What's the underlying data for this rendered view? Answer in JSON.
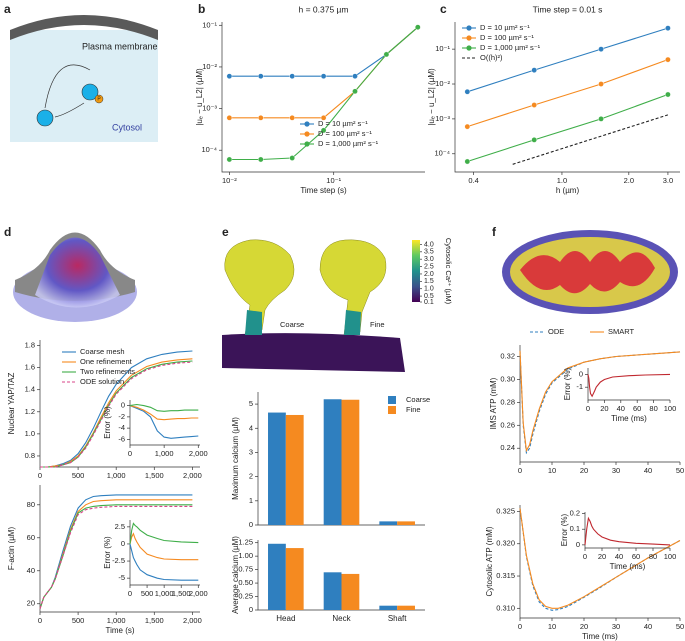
{
  "panel_labels": [
    "a",
    "b",
    "c",
    "d",
    "e",
    "f"
  ],
  "diagram_a": {
    "membrane": "Plasma membrane",
    "cytosol": "Cytosol",
    "phospho": "P"
  },
  "panel_e": {
    "coarse": "Coarse",
    "fine": "Fine",
    "colorbar": {
      "label": "Cytosolic Ca²⁺ (µM)",
      "range": [
        0.1,
        4.3
      ],
      "ticks": [
        {
          "value": 4.0,
          "label": "4.0"
        },
        3.5,
        {
          "value": 3.0,
          "label": "3.0"
        },
        2.5,
        {
          "value": 2.0,
          "label": "2.0"
        },
        1.5,
        {
          "value": 1.0,
          "label": "1.0"
        },
        0.5,
        0.1
      ]
    }
  },
  "chart_data": [
    {
      "type": "line",
      "title": "h = 0.375 µm",
      "xlabel": "Time step (s)",
      "ylabel": "|uₑ − u_L2| (µM)",
      "xscale": "log",
      "yscale": "log",
      "markers": true,
      "x": [
        0.01,
        0.02,
        0.04,
        0.08,
        0.16,
        0.32,
        0.64
      ],
      "xlim": [
        0.0085,
        0.75
      ],
      "ylim": [
        3e-05,
        0.12
      ],
      "xticks": [
        {
          "value": 0.01,
          "label": "10⁻²"
        },
        {
          "value": 0.1,
          "label": "10⁻¹"
        }
      ],
      "yticks": [
        {
          "value": 0.0001,
          "label": "10⁻⁴"
        },
        {
          "value": 0.001,
          "label": "10⁻³"
        },
        {
          "value": 0.01,
          "label": "10⁻²"
        },
        {
          "value": 0.1,
          "label": "10⁻¹"
        }
      ],
      "series": [
        {
          "name": "D = 10 µm² s⁻¹",
          "color": "#2f7fbf",
          "values": [
            0.006,
            0.006,
            0.006,
            0.006,
            0.006,
            0.02,
            0.09
          ]
        },
        {
          "name": "D = 100 µm² s⁻¹",
          "color": "#f58a20",
          "values": [
            0.0006,
            0.0006,
            0.0006,
            0.0006,
            0.0026,
            0.02,
            0.09
          ]
        },
        {
          "name": "D = 1,000 µm² s⁻¹",
          "color": "#3fae49",
          "values": [
            6e-05,
            6e-05,
            6.5e-05,
            0.0003,
            0.0026,
            0.02,
            0.09
          ]
        }
      ]
    },
    {
      "type": "line",
      "title": "Time step = 0.01 s",
      "xlabel": "h (µm)",
      "ylabel": "|uₑ − u_L2| (µM)",
      "xscale": "log",
      "yscale": "log",
      "markers": true,
      "x": [
        0.375,
        0.75,
        1.5,
        3.0
      ],
      "xlim": [
        0.33,
        3.4
      ],
      "ylim": [
        3e-05,
        0.6
      ],
      "xticks": [
        0.4,
        {
          "value": 1.0,
          "label": "1.0"
        },
        {
          "value": 2.0,
          "label": "2.0"
        },
        {
          "value": 3.0,
          "label": "3.0"
        }
      ],
      "yticks": [
        {
          "value": 0.0001,
          "label": "10⁻⁴"
        },
        {
          "value": 0.001,
          "label": "10⁻³"
        },
        {
          "value": 0.01,
          "label": "10⁻²"
        },
        {
          "value": 0.1,
          "label": "10⁻¹"
        }
      ],
      "series": [
        {
          "name": "D = 10 µm² s⁻¹",
          "color": "#2f7fbf",
          "values": [
            0.006,
            0.025,
            0.1,
            0.4
          ]
        },
        {
          "name": "D = 100 µm² s⁻¹",
          "color": "#f58a20",
          "values": [
            0.0006,
            0.0025,
            0.01,
            0.05
          ]
        },
        {
          "name": "D = 1,000 µm² s⁻¹",
          "color": "#3fae49",
          "values": [
            6e-05,
            0.00025,
            0.001,
            0.005
          ]
        },
        {
          "name": "O((h)²)",
          "color": "#222222",
          "dash": true,
          "nomarker": true,
          "x": [
            0.6,
            3.0
          ],
          "values": [
            5e-05,
            0.0013
          ]
        }
      ]
    },
    {
      "type": "line",
      "ylabel": "Nuclear YAP/TAZ",
      "x": [
        0,
        100,
        200,
        300,
        400,
        500,
        600,
        700,
        800,
        900,
        1000,
        1200,
        1400,
        1600,
        1800,
        2000
      ],
      "xlim": [
        0,
        2100
      ],
      "ylim": [
        0.7,
        1.85
      ],
      "xticks": [
        0,
        500,
        {
          "value": 1000,
          "label": "1,000"
        },
        {
          "value": 1500,
          "label": "1,500"
        },
        {
          "value": 2000,
          "label": "2,000"
        }
      ],
      "yticks": [
        0.8,
        {
          "value": 1.0,
          "label": "1.0"
        },
        1.2,
        1.4,
        1.6,
        1.8
      ],
      "series": [
        {
          "name": "Coarse mesh",
          "color": "#2f7fbf",
          "values": [
            0.7,
            0.7,
            0.71,
            0.73,
            0.76,
            0.82,
            0.92,
            1.05,
            1.2,
            1.34,
            1.45,
            1.6,
            1.68,
            1.72,
            1.74,
            1.75
          ]
        },
        {
          "name": "One refinement",
          "color": "#f58a20",
          "values": [
            0.7,
            0.7,
            0.71,
            0.72,
            0.75,
            0.8,
            0.89,
            1.01,
            1.15,
            1.28,
            1.39,
            1.53,
            1.61,
            1.65,
            1.67,
            1.68
          ]
        },
        {
          "name": "Two refinements",
          "color": "#3fae49",
          "values": [
            0.7,
            0.7,
            0.7,
            0.72,
            0.74,
            0.79,
            0.88,
            1.0,
            1.13,
            1.26,
            1.37,
            1.51,
            1.59,
            1.63,
            1.65,
            1.66
          ]
        },
        {
          "name": "ODE solution",
          "color": "#d9468a",
          "dash": true,
          "values": [
            0.7,
            0.7,
            0.7,
            0.72,
            0.74,
            0.79,
            0.87,
            0.99,
            1.12,
            1.25,
            1.36,
            1.5,
            1.58,
            1.62,
            1.64,
            1.65
          ]
        }
      ]
    },
    {
      "type": "line",
      "ylabel": "Error (%)",
      "x": [
        0,
        200,
        400,
        600,
        800,
        1000,
        1200,
        1400,
        1600,
        1800,
        2000
      ],
      "xlim": [
        0,
        2050
      ],
      "ylim": [
        -7,
        1
      ],
      "xticks": [
        0,
        {
          "value": 1000,
          "label": "1,000"
        },
        {
          "value": 2000,
          "label": "2,000"
        }
      ],
      "yticks": [
        0,
        -2,
        -4,
        -6
      ],
      "series": [
        {
          "color": "#2f7fbf",
          "values": [
            0,
            -0.5,
            -1,
            -2,
            -4.5,
            -5.6,
            -5.8,
            -5.7,
            -5.6,
            -5.5,
            -5.4
          ]
        },
        {
          "color": "#f58a20",
          "values": [
            0,
            -0.3,
            -0.8,
            -1.5,
            -2.4,
            -2.5,
            -2.4,
            -2.3,
            -2.3,
            -2.2,
            -2.2
          ]
        },
        {
          "color": "#3fae49",
          "values": [
            0,
            0.2,
            0,
            -0.3,
            -0.9,
            -1.0,
            -0.9,
            -0.9,
            -0.8,
            -0.8,
            -0.8
          ]
        }
      ]
    },
    {
      "type": "line",
      "ylabel": "F-actin (µM)",
      "xlabel": "Time (s)",
      "x": [
        0,
        50,
        100,
        150,
        200,
        300,
        400,
        500,
        600,
        700,
        800,
        1000,
        1200,
        1500,
        2000
      ],
      "xlim": [
        0,
        2100
      ],
      "ylim": [
        15,
        92
      ],
      "xticks": [
        0,
        500,
        {
          "value": 1000,
          "label": "1,000"
        },
        {
          "value": 1500,
          "label": "1,500"
        },
        {
          "value": 2000,
          "label": "2,000"
        }
      ],
      "yticks": [
        20,
        40,
        60,
        80
      ],
      "series": [
        {
          "color": "#2f7fbf",
          "values": [
            17,
            24,
            27,
            30,
            36,
            52,
            67,
            78,
            83,
            85,
            85.5,
            86,
            86,
            86,
            86
          ]
        },
        {
          "color": "#f58a20",
          "values": [
            17,
            24,
            27,
            30,
            35,
            50,
            65,
            76,
            80,
            82,
            82.5,
            83,
            83,
            83,
            83
          ]
        },
        {
          "color": "#3fae49",
          "values": [
            17,
            24,
            27,
            30,
            35,
            49,
            64,
            75,
            78,
            79,
            79.5,
            80,
            80,
            80,
            80
          ]
        },
        {
          "color": "#d9468a",
          "dash": true,
          "values": [
            17,
            24,
            27,
            30,
            35,
            49,
            63,
            74,
            77,
            78,
            78.5,
            79,
            79,
            79,
            79
          ]
        }
      ]
    },
    {
      "type": "line",
      "ylabel": "Error (%)",
      "x": [
        0,
        50,
        100,
        150,
        200,
        300,
        500,
        800,
        1000,
        1500,
        2000
      ],
      "xlim": [
        0,
        2050
      ],
      "ylim": [
        -6,
        3.5
      ],
      "xticks": [
        0,
        500,
        {
          "value": 1000,
          "label": "1,000"
        },
        {
          "value": 1500,
          "label": "1,500"
        },
        {
          "value": 2000,
          "label": "2,000"
        }
      ],
      "yticks": [
        2.5,
        0,
        -2.5,
        -5
      ],
      "series": [
        {
          "color": "#2f7fbf",
          "values": [
            0,
            -1,
            -2,
            -2.5,
            -3,
            -3.8,
            -4.5,
            -5,
            -5.2,
            -5.3,
            -5.3
          ]
        },
        {
          "color": "#f58a20",
          "values": [
            0,
            1,
            1.5,
            0.8,
            0.3,
            -0.5,
            -1.5,
            -2,
            -2.2,
            -2.3,
            -2.3
          ]
        },
        {
          "color": "#3fae49",
          "values": [
            0,
            2,
            3,
            2.7,
            2.5,
            2,
            1.3,
            0.8,
            0.5,
            0.3,
            0.2
          ]
        }
      ]
    },
    {
      "type": "bar",
      "ylabel": "Maximum calcium (µM)",
      "ylim": [
        0,
        5.5
      ],
      "yticks": [
        0,
        1,
        2,
        3,
        4,
        5
      ],
      "series": [
        {
          "name": "Coarse",
          "color": "#2f7fbf",
          "values": [
            4.65,
            5.2,
            0.15
          ]
        },
        {
          "name": "Fine",
          "color": "#f58a20",
          "values": [
            4.55,
            5.18,
            0.15
          ]
        }
      ]
    },
    {
      "type": "bar",
      "ylabel": "Average calcium (µM)",
      "categories": [
        "Head",
        "Neck",
        "Shaft"
      ],
      "ylim": [
        0,
        1.3
      ],
      "yticks": [
        0,
        0.25,
        {
          "value": 0.5,
          "label": "0.50"
        },
        0.75,
        {
          "value": 1,
          "label": "1.00"
        },
        1.25
      ],
      "series": [
        {
          "color": "#2f7fbf",
          "values": [
            1.23,
            0.7,
            0.08
          ]
        },
        {
          "color": "#f58a20",
          "values": [
            1.15,
            0.67,
            0.08
          ]
        }
      ]
    },
    {
      "type": "line",
      "ylabel": "IMS ATP (mM)",
      "x": [
        0,
        1,
        2,
        3,
        4,
        6,
        8,
        10,
        15,
        20,
        25,
        30,
        40,
        50
      ],
      "xlim": [
        0,
        50
      ],
      "ylim": [
        0.228,
        0.33
      ],
      "xticks": [
        0,
        10,
        20,
        30,
        40,
        50
      ],
      "yticks": [
        0.24,
        0.26,
        0.28,
        {
          "value": 0.3,
          "label": "0.30"
        },
        0.32
      ],
      "legend": "top",
      "series": [
        {
          "name": "ODE",
          "color": "#2f7fbf",
          "dash": true,
          "values": [
            0.325,
            0.26,
            0.236,
            0.24,
            0.252,
            0.272,
            0.287,
            0.297,
            0.309,
            0.315,
            0.318,
            0.32,
            0.322,
            0.324
          ]
        },
        {
          "name": "SMART",
          "color": "#f58a20",
          "values": [
            0.325,
            0.262,
            0.238,
            0.243,
            0.255,
            0.274,
            0.289,
            0.298,
            0.31,
            0.315,
            0.318,
            0.32,
            0.322,
            0.324
          ]
        }
      ]
    },
    {
      "type": "line",
      "ylabel": "Error (%)",
      "xlabel": "Time (ms)",
      "x": [
        0,
        1,
        2,
        3,
        5,
        8,
        10,
        15,
        20,
        30,
        50,
        70,
        100
      ],
      "xlim": [
        0,
        100
      ],
      "ylim": [
        -2,
        0.5
      ],
      "xticks": [
        0,
        20,
        40,
        60,
        80,
        100
      ],
      "yticks": [
        0,
        -1
      ],
      "series": [
        {
          "color": "#c0282f",
          "values": [
            0,
            -0.3,
            -1.0,
            -1.5,
            -1.7,
            -1.3,
            -1.0,
            -0.6,
            -0.4,
            -0.2,
            -0.1,
            -0.05,
            0
          ]
        }
      ]
    },
    {
      "type": "line",
      "ylabel": "Cytosolic ATP (mM)",
      "xlabel": "Time (ms)",
      "x": [
        0,
        2,
        4,
        6,
        8,
        10,
        12,
        15,
        20,
        25,
        30,
        40,
        50
      ],
      "xlim": [
        0,
        50
      ],
      "ylim": [
        0.3085,
        0.326
      ],
      "xticks": [
        0,
        10,
        20,
        30,
        40,
        50
      ],
      "yticks": [
        {
          "value": 0.31,
          "label": "0.310"
        },
        0.315,
        {
          "value": 0.32,
          "label": "0.320"
        },
        0.325
      ],
      "series": [
        {
          "color": "#2f7fbf",
          "dash": true,
          "values": [
            0.3255,
            0.318,
            0.3135,
            0.311,
            0.31,
            0.3097,
            0.3098,
            0.3103,
            0.3117,
            0.3132,
            0.3148,
            0.3178,
            0.3205
          ]
        },
        {
          "color": "#f58a20",
          "values": [
            0.3255,
            0.3182,
            0.3138,
            0.3113,
            0.3103,
            0.31,
            0.31,
            0.3105,
            0.3118,
            0.3133,
            0.3148,
            0.3178,
            0.3205
          ]
        }
      ]
    },
    {
      "type": "line",
      "ylabel": "Error (%)",
      "xlabel": "Time (ms)",
      "x": [
        0,
        2,
        4,
        6,
        8,
        10,
        15,
        20,
        30,
        40,
        60,
        80,
        100
      ],
      "xlim": [
        0,
        100
      ],
      "ylim": [
        -0.02,
        0.21
      ],
      "xticks": [
        0,
        20,
        40,
        60,
        80,
        100
      ],
      "yticks": [
        0,
        0.1,
        0.2
      ],
      "series": [
        {
          "color": "#c0282f",
          "values": [
            0,
            0.1,
            0.17,
            0.15,
            0.12,
            0.1,
            0.07,
            0.05,
            0.03,
            0.02,
            0.01,
            0.005,
            0
          ]
        }
      ]
    }
  ]
}
